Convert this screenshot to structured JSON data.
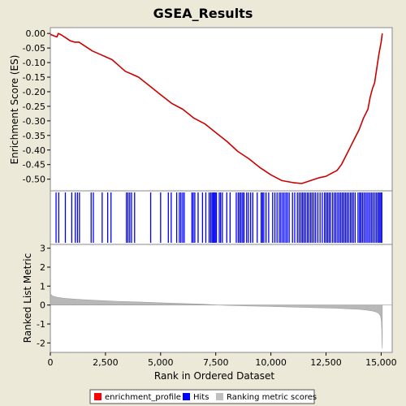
{
  "chart_data": {
    "type": "line",
    "title": "GSEA_Results",
    "xlabel": "Rank in Ordered Dataset",
    "xlim": [
      0,
      15500
    ],
    "x_ticks": [
      "0",
      "2,500",
      "5,000",
      "7,500",
      "10,000",
      "12,500",
      "15,000"
    ],
    "x_tick_values": [
      0,
      2500,
      5000,
      7500,
      10000,
      12500,
      15000
    ],
    "panels": [
      {
        "name": "enrichment",
        "ylabel": "Enrichment Score (ES)",
        "ylim": [
          -0.54,
          0.02
        ],
        "y_ticks": [
          "0.00",
          "-0.05",
          "-0.10",
          "-0.15",
          "-0.20",
          "-0.25",
          "-0.30",
          "-0.35",
          "-0.40",
          "-0.45",
          "-0.50"
        ],
        "y_tick_values": [
          0.0,
          -0.05,
          -0.1,
          -0.15,
          -0.2,
          -0.25,
          -0.3,
          -0.35,
          -0.4,
          -0.45,
          -0.5
        ],
        "series": [
          {
            "name": "enrichment_profile",
            "color": "#cc0000",
            "x": [
              0,
              150,
              300,
              360,
              500,
              700,
              900,
              1100,
              1300,
              1600,
              1900,
              2200,
              2500,
              2800,
              3100,
              3400,
              3700,
              4000,
              4500,
              5000,
              5500,
              6000,
              6500,
              7000,
              7500,
              8000,
              8500,
              9000,
              9500,
              10000,
              10500,
              11000,
              11400,
              11800,
              12200,
              12500,
              12800,
              13000,
              13200,
              13400,
              13600,
              13800,
              14000,
              14200,
              14400,
              14500,
              14600,
              14700,
              14800,
              14900,
              15000,
              15050
            ],
            "y": [
              -0.003,
              -0.008,
              -0.012,
              0.0,
              -0.005,
              -0.015,
              -0.025,
              -0.03,
              -0.03,
              -0.045,
              -0.06,
              -0.07,
              -0.08,
              -0.09,
              -0.11,
              -0.13,
              -0.14,
              -0.15,
              -0.18,
              -0.21,
              -0.24,
              -0.26,
              -0.29,
              -0.31,
              -0.34,
              -0.37,
              -0.405,
              -0.43,
              -0.46,
              -0.485,
              -0.505,
              -0.512,
              -0.515,
              -0.505,
              -0.495,
              -0.49,
              -0.478,
              -0.47,
              -0.45,
              -0.42,
              -0.39,
              -0.36,
              -0.33,
              -0.29,
              -0.26,
              -0.22,
              -0.19,
              -0.17,
              -0.12,
              -0.07,
              -0.03,
              0.0
            ]
          }
        ]
      },
      {
        "name": "hits",
        "series_name": "Hits",
        "color": "#0000ff",
        "hit_positions": [
          260,
          380,
          680,
          970,
          1130,
          1230,
          1320,
          1850,
          1950,
          2350,
          2600,
          2750,
          3450,
          3520,
          3600,
          3680,
          3820,
          4550,
          5000,
          5350,
          5480,
          5730,
          5850,
          5920,
          6000,
          6070,
          6420,
          6480,
          6550,
          6700,
          6900,
          7050,
          7200,
          7270,
          7330,
          7380,
          7430,
          7480,
          7530,
          7660,
          7720,
          7800,
          8000,
          8150,
          8430,
          8520,
          8590,
          8650,
          8720,
          8780,
          8900,
          8980,
          9080,
          9180,
          9380,
          9560,
          9620,
          9680,
          9780,
          9900,
          10080,
          10180,
          10280,
          10380,
          10450,
          10530,
          10600,
          10680,
          10750,
          10830,
          10980,
          11080,
          11200,
          11280,
          11360,
          11430,
          11500,
          11570,
          11650,
          11720,
          11800,
          11870,
          11950,
          12030,
          12130,
          12230,
          12330,
          12430,
          12500,
          12570,
          12640,
          12710,
          12800,
          12880,
          12950,
          13030,
          13100,
          13170,
          13240,
          13310,
          13380,
          13450,
          13520,
          13600,
          13670,
          13740,
          13820,
          13950,
          14020,
          14080,
          14150,
          14220,
          14290,
          14360,
          14430,
          14500,
          14570,
          14640,
          14720,
          14790,
          14860,
          14920,
          14980,
          15030
        ]
      },
      {
        "name": "ranking",
        "ylabel": "Ranked List Metric",
        "series_name": "Ranking metric scores",
        "color": "#b8b8b8",
        "ylim": [
          -2.5,
          3.2
        ],
        "y_ticks": [
          "3",
          "2",
          "1",
          "0",
          "-1",
          "-2"
        ],
        "y_tick_values": [
          3,
          2,
          1,
          0,
          -1,
          -2
        ],
        "x": [
          0,
          30,
          100,
          300,
          600,
          1000,
          1500,
          2000,
          3000,
          4000,
          5000,
          6000,
          7000,
          7600,
          8000,
          9000,
          10000,
          11000,
          12000,
          13000,
          13500,
          14000,
          14300,
          14600,
          14800,
          14900,
          14970,
          15010,
          15030,
          15040,
          15050
        ],
        "y": [
          0.62,
          0.55,
          0.48,
          0.41,
          0.36,
          0.32,
          0.28,
          0.25,
          0.2,
          0.16,
          0.12,
          0.08,
          0.04,
          0.0,
          -0.02,
          -0.05,
          -0.08,
          -0.11,
          -0.14,
          -0.17,
          -0.2,
          -0.23,
          -0.26,
          -0.31,
          -0.38,
          -0.45,
          -0.58,
          -0.85,
          -1.4,
          -2.0,
          -2.3
        ]
      }
    ],
    "legend": {
      "placement": "bottom",
      "entries": [
        {
          "label": "enrichment_profile",
          "color": "#ff0000"
        },
        {
          "label": "Hits",
          "color": "#0000ff"
        },
        {
          "label": "Ranking metric scores",
          "color": "#c0c0c0"
        }
      ]
    }
  }
}
